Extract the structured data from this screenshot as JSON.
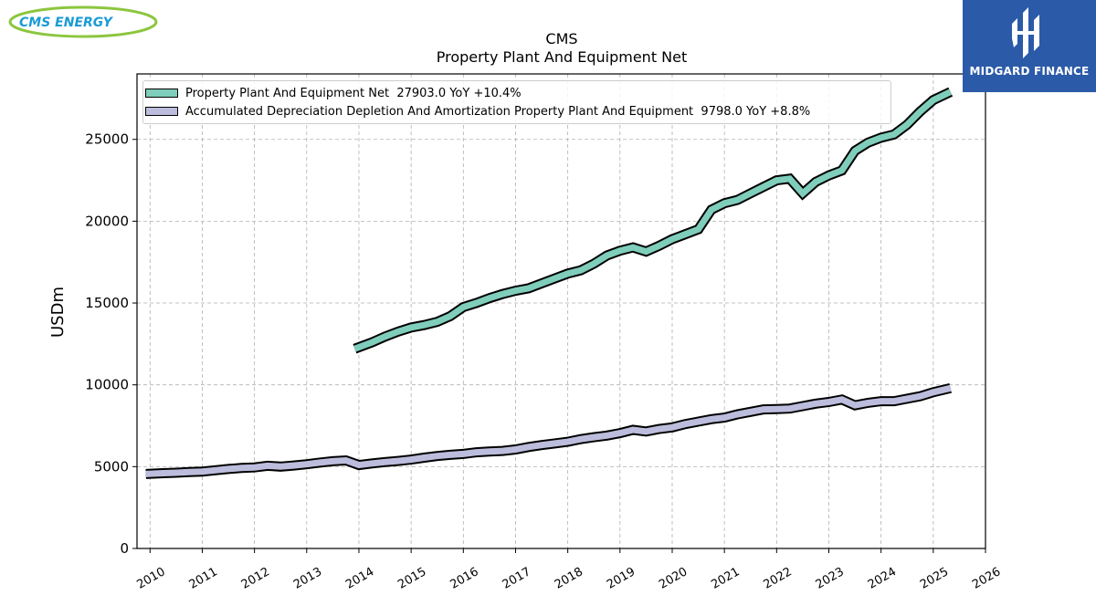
{
  "brand": {
    "left_logo_text": "CMS ENERGY",
    "right_logo_text": "MIDGARD FINANCE",
    "right_logo_bg": "#2b5aa8",
    "left_logo_color": "#1a9bd7",
    "left_logo_swoosh": "#8cc63f"
  },
  "chart_data": {
    "type": "line",
    "title": "CMS",
    "subtitle": "Property Plant And Equipment Net",
    "xlabel": "",
    "ylabel": "USDm",
    "xlim": [
      2009.75,
      2026.0
    ],
    "ylim": [
      0,
      29000
    ],
    "x_ticks": [
      "2010",
      "2011",
      "2012",
      "2013",
      "2014",
      "2015",
      "2016",
      "2017",
      "2018",
      "2019",
      "2020",
      "2021",
      "2022",
      "2023",
      "2024",
      "2025",
      "2026"
    ],
    "y_ticks": [
      "0",
      "5000",
      "10000",
      "15000",
      "20000",
      "25000"
    ],
    "grid": true,
    "legend_position": "top-left",
    "series": [
      {
        "name": "Property Plant And Equipment Net  27903.0 YoY +10.4%",
        "color": "#7fcdbb",
        "x": [
          2013.92,
          2014.25,
          2014.5,
          2014.75,
          2015.0,
          2015.25,
          2015.5,
          2015.75,
          2016.0,
          2016.25,
          2016.5,
          2016.75,
          2017.0,
          2017.25,
          2017.5,
          2017.75,
          2018.0,
          2018.25,
          2018.5,
          2018.75,
          2019.0,
          2019.25,
          2019.5,
          2019.75,
          2020.0,
          2020.25,
          2020.5,
          2020.75,
          2021.0,
          2021.25,
          2021.5,
          2021.75,
          2022.0,
          2022.25,
          2022.5,
          2022.75,
          2023.0,
          2023.25,
          2023.5,
          2023.75,
          2024.0,
          2024.25,
          2024.5,
          2024.75,
          2025.0,
          2025.33
        ],
        "values": [
          12200,
          12600,
          12950,
          13250,
          13500,
          13650,
          13850,
          14200,
          14750,
          15000,
          15300,
          15550,
          15750,
          15900,
          16200,
          16500,
          16800,
          17000,
          17400,
          17900,
          18200,
          18400,
          18150,
          18500,
          18900,
          19200,
          19500,
          20700,
          21100,
          21300,
          21700,
          22100,
          22500,
          22600,
          21700,
          22400,
          22800,
          23100,
          24300,
          24800,
          25100,
          25300,
          25900,
          26700,
          27400,
          27903
        ]
      },
      {
        "name": "Accumulated Depreciation Depletion And Amortization Property Plant And Equipment  9798.0 YoY +8.8%",
        "color": "#bcbddc",
        "x": [
          2009.92,
          2010.25,
          2010.5,
          2010.75,
          2011.0,
          2011.25,
          2011.5,
          2011.75,
          2012.0,
          2012.25,
          2012.5,
          2012.75,
          2013.0,
          2013.25,
          2013.5,
          2013.75,
          2014.0,
          2014.25,
          2014.5,
          2014.75,
          2015.0,
          2015.25,
          2015.5,
          2015.75,
          2016.0,
          2016.25,
          2016.5,
          2016.75,
          2017.0,
          2017.25,
          2017.5,
          2017.75,
          2018.0,
          2018.25,
          2018.5,
          2018.75,
          2019.0,
          2019.25,
          2019.5,
          2019.75,
          2020.0,
          2020.25,
          2020.5,
          2020.75,
          2021.0,
          2021.25,
          2021.5,
          2021.75,
          2022.0,
          2022.25,
          2022.5,
          2022.75,
          2023.0,
          2023.25,
          2023.5,
          2023.75,
          2024.0,
          2024.25,
          2024.5,
          2024.75,
          2025.0,
          2025.33
        ],
        "values": [
          4550,
          4600,
          4630,
          4670,
          4700,
          4780,
          4860,
          4920,
          4950,
          5050,
          5000,
          5070,
          5150,
          5250,
          5330,
          5380,
          5100,
          5200,
          5280,
          5350,
          5430,
          5550,
          5650,
          5720,
          5780,
          5880,
          5930,
          5960,
          6050,
          6200,
          6320,
          6420,
          6520,
          6680,
          6800,
          6900,
          7050,
          7250,
          7150,
          7300,
          7400,
          7600,
          7750,
          7900,
          8000,
          8200,
          8350,
          8500,
          8520,
          8550,
          8700,
          8850,
          8950,
          9100,
          8750,
          8900,
          9000,
          9000,
          9150,
          9300,
          9550,
          9798
        ]
      }
    ]
  }
}
